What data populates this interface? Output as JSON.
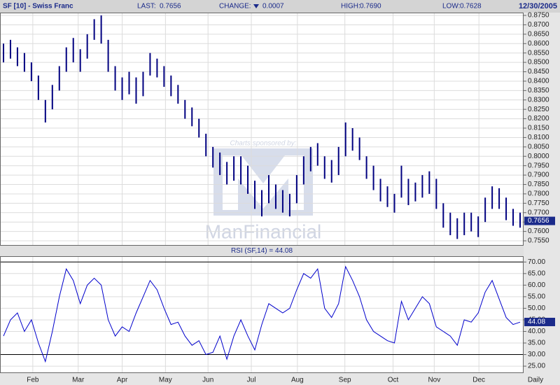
{
  "header": {
    "symbol": "SF [10] - Swiss Franc",
    "last_label": "LAST:",
    "last": "0.7656",
    "change_label": "CHANGE:",
    "change": "0.0007",
    "high_label": "HIGH:",
    "high": "0.7690",
    "low_label": "LOW:",
    "low": "0.7628",
    "date": "12/30/2005"
  },
  "watermark": {
    "sponsor": "Charts sponsored by:",
    "brand": "ManFinancial"
  },
  "chart_data": [
    {
      "type": "range_bar",
      "color": "#000080",
      "xlim": [
        0,
        75
      ],
      "xticks": [
        {
          "value": 4.7,
          "label": "Feb"
        },
        {
          "value": 11.2,
          "label": "Mar"
        },
        {
          "value": 17.5,
          "label": "Apr"
        },
        {
          "value": 23.7,
          "label": "May"
        },
        {
          "value": 29.8,
          "label": "Jun"
        },
        {
          "value": 36.0,
          "label": "Jul"
        },
        {
          "value": 42.6,
          "label": "Aug"
        },
        {
          "value": 49.4,
          "label": "Sep"
        },
        {
          "value": 56.3,
          "label": "Oct"
        },
        {
          "value": 62.2,
          "label": "Nov"
        },
        {
          "value": 68.6,
          "label": "Dec"
        }
      ],
      "ylim": [
        0.7524,
        0.8765
      ],
      "yticks": [
        {
          "value": 0.755,
          "label": "0.7550"
        },
        {
          "value": 0.76,
          "label": "0.7600"
        },
        {
          "value": 0.765,
          "label": "0.7650"
        },
        {
          "value": 0.77,
          "label": "0.7700"
        },
        {
          "value": 0.775,
          "label": "0.7750"
        },
        {
          "value": 0.78,
          "label": "0.7800"
        },
        {
          "value": 0.785,
          "label": "0.7850"
        },
        {
          "value": 0.79,
          "label": "0.7900"
        },
        {
          "value": 0.795,
          "label": "0.7950"
        },
        {
          "value": 0.8,
          "label": "0.8000"
        },
        {
          "value": 0.805,
          "label": "0.8050"
        },
        {
          "value": 0.81,
          "label": "0.8100"
        },
        {
          "value": 0.815,
          "label": "0.8150"
        },
        {
          "value": 0.82,
          "label": "0.8200"
        },
        {
          "value": 0.825,
          "label": "0.8250"
        },
        {
          "value": 0.83,
          "label": "0.8300"
        },
        {
          "value": 0.835,
          "label": "0.8350"
        },
        {
          "value": 0.84,
          "label": "0.8400"
        },
        {
          "value": 0.845,
          "label": "0.8450"
        },
        {
          "value": 0.85,
          "label": "0.8500"
        },
        {
          "value": 0.855,
          "label": "0.8550"
        },
        {
          "value": 0.86,
          "label": "0.8600"
        },
        {
          "value": 0.865,
          "label": "0.8650"
        },
        {
          "value": 0.87,
          "label": "0.8700"
        },
        {
          "value": 0.875,
          "label": "0.8750"
        }
      ],
      "grid": true,
      "high": [
        0.86,
        0.862,
        0.858,
        0.855,
        0.85,
        0.843,
        0.83,
        0.838,
        0.848,
        0.858,
        0.863,
        0.857,
        0.865,
        0.873,
        0.875,
        0.862,
        0.848,
        0.842,
        0.845,
        0.842,
        0.845,
        0.855,
        0.852,
        0.848,
        0.843,
        0.838,
        0.83,
        0.826,
        0.82,
        0.812,
        0.805,
        0.802,
        0.797,
        0.8,
        0.8,
        0.795,
        0.787,
        0.782,
        0.79,
        0.785,
        0.782,
        0.78,
        0.79,
        0.8,
        0.805,
        0.807,
        0.8,
        0.798,
        0.805,
        0.818,
        0.815,
        0.81,
        0.8,
        0.795,
        0.788,
        0.784,
        0.78,
        0.795,
        0.788,
        0.786,
        0.79,
        0.792,
        0.788,
        0.775,
        0.77,
        0.767,
        0.77,
        0.77,
        0.768,
        0.778,
        0.784,
        0.783,
        0.778,
        0.772,
        0.77
      ],
      "low": [
        0.85,
        0.852,
        0.848,
        0.845,
        0.84,
        0.83,
        0.818,
        0.825,
        0.835,
        0.845,
        0.85,
        0.845,
        0.852,
        0.862,
        0.86,
        0.845,
        0.835,
        0.83,
        0.833,
        0.828,
        0.832,
        0.843,
        0.842,
        0.837,
        0.832,
        0.828,
        0.82,
        0.816,
        0.81,
        0.8,
        0.794,
        0.79,
        0.785,
        0.787,
        0.785,
        0.78,
        0.772,
        0.768,
        0.775,
        0.772,
        0.77,
        0.768,
        0.775,
        0.785,
        0.792,
        0.795,
        0.788,
        0.786,
        0.79,
        0.8,
        0.803,
        0.798,
        0.788,
        0.782,
        0.776,
        0.773,
        0.77,
        0.778,
        0.774,
        0.776,
        0.778,
        0.78,
        0.772,
        0.762,
        0.758,
        0.756,
        0.758,
        0.76,
        0.757,
        0.765,
        0.772,
        0.772,
        0.766,
        0.763,
        0.762
      ],
      "last_marker": {
        "value": 0.7656,
        "label": "0.7656"
      }
    },
    {
      "type": "line",
      "title": "RSI (SF,14) = 44.08",
      "color": "#0000cc",
      "xlim": [
        0,
        75
      ],
      "ylim": [
        22,
        72.5
      ],
      "yticks": [
        {
          "value": 25,
          "label": "25.00"
        },
        {
          "value": 30,
          "label": "30.00"
        },
        {
          "value": 35,
          "label": "35.00"
        },
        {
          "value": 40,
          "label": "40.00"
        },
        {
          "value": 45,
          "label": "45.00"
        },
        {
          "value": 50,
          "label": "50.00"
        },
        {
          "value": 55,
          "label": "55.00"
        },
        {
          "value": 60,
          "label": "60.00"
        },
        {
          "value": 65,
          "label": "65.00"
        },
        {
          "value": 70,
          "label": "70.00"
        }
      ],
      "grid": true,
      "ref_lines": [
        70,
        30
      ],
      "values": [
        38,
        45,
        48,
        40,
        45,
        35,
        27,
        40,
        55,
        67,
        62,
        52,
        60,
        63,
        60,
        45,
        38,
        42,
        40,
        48,
        55,
        62,
        58,
        50,
        43,
        44,
        38,
        34,
        36,
        30,
        31,
        38,
        28,
        38,
        45,
        38,
        32,
        43,
        52,
        50,
        48,
        50,
        58,
        65,
        63,
        67,
        50,
        46,
        52,
        68,
        62,
        55,
        45,
        40,
        38,
        36,
        35,
        53,
        45,
        50,
        55,
        52,
        42,
        40,
        38,
        34,
        45,
        44,
        48,
        57,
        62,
        54,
        46,
        43,
        44
      ],
      "last_marker": {
        "value": 44.08,
        "label": "44.08"
      },
      "x_axis_label": "Daily"
    }
  ]
}
